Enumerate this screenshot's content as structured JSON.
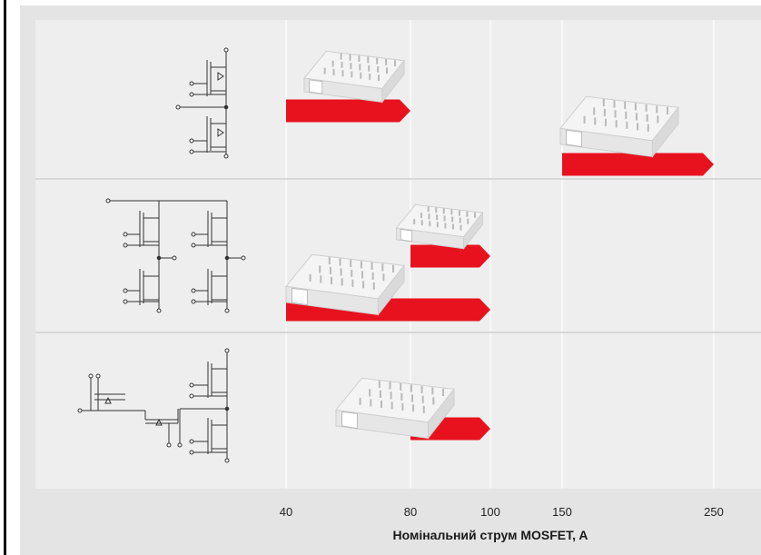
{
  "chart_data": {
    "type": "bar",
    "orientation": "horizontal-range",
    "xscale": "nonlinear-ticks",
    "xlabel": "Номінальний струм MOSFET, A",
    "x_ticks": [
      40,
      80,
      100,
      150,
      250
    ],
    "xlim": [
      40,
      250
    ],
    "grid": true,
    "topologies": [
      {
        "name": "half-bridge",
        "rows": [
          {
            "from": 40,
            "to": 80
          },
          {
            "from": 150,
            "to": 250
          }
        ]
      },
      {
        "name": "full-bridge",
        "rows": [
          {
            "from": 80,
            "to": 100
          },
          {
            "from": 40,
            "to": 100
          }
        ]
      },
      {
        "name": "boost-half-bridge",
        "rows": [
          {
            "from": 80,
            "to": 100
          }
        ]
      }
    ],
    "colors": {
      "bar": "#e8121f",
      "grid": "#ffffff",
      "separator": "#cfcfcf",
      "module": "#f4f4f4",
      "module_pins": "#b9b9b9",
      "schematic": "#333333"
    }
  }
}
